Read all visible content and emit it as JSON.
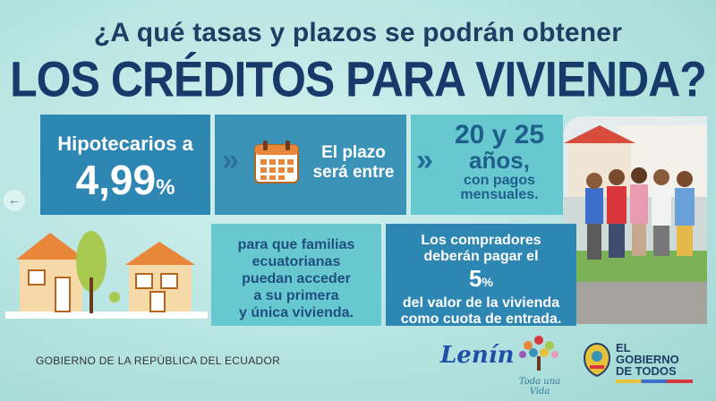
{
  "header": {
    "question": "¿A qué tasas y plazos se podrán obtener",
    "headline": "LOS CRÉDITOS PARA VIVIENDA?"
  },
  "rate_box": {
    "label": "Hipotecarios a",
    "value": "4,99",
    "unit": "%"
  },
  "term_box": {
    "line1": "El plazo",
    "line2": "será entre",
    "icon": "calendar-icon"
  },
  "years_box": {
    "value": "20 y 25",
    "unit": "años,",
    "line1": "con pagos",
    "line2": "mensuales."
  },
  "families_box": {
    "line1": "para que familias",
    "line2": "ecuatorianas",
    "line3": "puedan acceder",
    "line4": "a su primera",
    "line5": "y única vivienda."
  },
  "down_payment_box": {
    "line1": "Los compradores",
    "line2": "deberán pagar el",
    "value": "5",
    "unit": "%",
    "line3": "del valor de la vivienda",
    "line4": "como cuota de entrada."
  },
  "footer": {
    "government": "GOBIERNO DE LA REPÚBLICA DEL ECUADOR",
    "lenin": "Lenín",
    "toda": "Toda una Vida",
    "el_gobierno_line1": "EL",
    "el_gobierno_line2": "GOBIERNO",
    "el_gobierno_line3": "DE TODOS"
  },
  "nav": {
    "prev": "←"
  }
}
